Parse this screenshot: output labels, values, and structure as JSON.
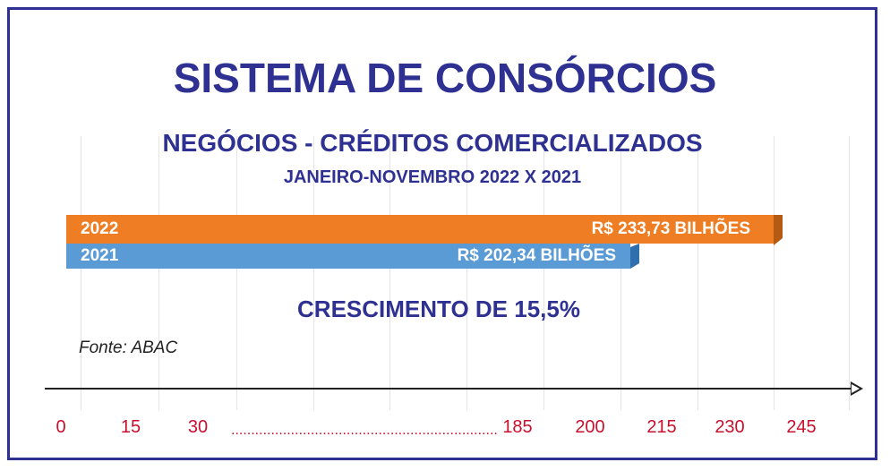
{
  "title": "SISTEMA DE CONSÓRCIOS",
  "subtitle": "NEGÓCIOS - CRÉDITOS COMERCIALIZADOS",
  "period": "JANEIRO-NOVEMBRO 2022 X 2021",
  "growth": "CRESCIMENTO DE 15,5%",
  "source": "Fonte: ABAC",
  "colors": {
    "frame": "#2e3192",
    "bar_2022": "#ee7d24",
    "bar_2022_side": "#b55a12",
    "bar_2021": "#5b9bd5",
    "bar_2021_side": "#2f6fae",
    "tick_labels": "#c8102e"
  },
  "chart_data": {
    "type": "bar",
    "orientation": "horizontal",
    "categories": [
      "2022",
      "2021"
    ],
    "values": [
      233.73,
      202.34
    ],
    "value_labels": [
      "R$ 233,73 BILHÕES",
      "R$ 202,34 BILHÕES"
    ],
    "x_ticks": [
      "0",
      "15",
      "30",
      "185",
      "200",
      "215",
      "230",
      "245"
    ],
    "x_tick_values": [
      0,
      15,
      30,
      185,
      200,
      215,
      230,
      245
    ],
    "axis_break_label": "...................................................................",
    "grid": true
  }
}
